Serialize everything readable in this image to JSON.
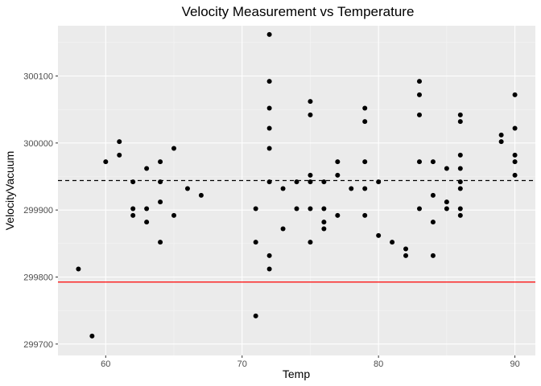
{
  "colors": {
    "panel_background": "#ebebeb",
    "grid_major": "#ffffff",
    "grid_minor": "#f5f5f5",
    "points": "#000000",
    "mean_line": "#000000",
    "reference_line": "#ff0000",
    "tick_text": "#4d4d4d"
  },
  "chart_data": {
    "type": "scatter",
    "title": "Velocity Measurement vs Temperature",
    "xlabel": "Temp",
    "ylabel": "VelocityVacuum",
    "xlim": [
      56.5,
      91.5
    ],
    "ylim": [
      299683,
      300175
    ],
    "x_ticks": [
      60,
      70,
      80,
      90
    ],
    "x_tick_labels": [
      "60",
      "70",
      "80",
      "90"
    ],
    "y_ticks": [
      299700,
      299800,
      299900,
      300000,
      300100
    ],
    "y_tick_labels": [
      "299700",
      "299800",
      "299900",
      "300000",
      "300100"
    ],
    "grid": true,
    "legend": "none",
    "hlines": [
      {
        "y": 299944,
        "style": "dashed",
        "color": "#000000"
      },
      {
        "y": 299792.5,
        "style": "solid",
        "color": "#ff0000"
      }
    ],
    "points": [
      [
        58,
        299812
      ],
      [
        59,
        299712
      ],
      [
        60,
        299972
      ],
      [
        61,
        300002
      ],
      [
        61,
        299982
      ],
      [
        62,
        299942
      ],
      [
        62,
        299902
      ],
      [
        62,
        299892
      ],
      [
        63,
        299962
      ],
      [
        63,
        299902
      ],
      [
        63,
        299882
      ],
      [
        64,
        299972
      ],
      [
        64,
        299942
      ],
      [
        64,
        299912
      ],
      [
        64,
        299852
      ],
      [
        65,
        299992
      ],
      [
        65,
        299892
      ],
      [
        66,
        299932
      ],
      [
        67,
        299922
      ],
      [
        71,
        299902
      ],
      [
        71,
        299852
      ],
      [
        71,
        299742
      ],
      [
        72,
        300162
      ],
      [
        72,
        300092
      ],
      [
        72,
        300052
      ],
      [
        72,
        300022
      ],
      [
        72,
        299992
      ],
      [
        72,
        299942
      ],
      [
        72,
        299832
      ],
      [
        72,
        299812
      ],
      [
        73,
        299932
      ],
      [
        73,
        299872
      ],
      [
        74,
        299942
      ],
      [
        74,
        299902
      ],
      [
        75,
        300062
      ],
      [
        75,
        300042
      ],
      [
        75,
        299952
      ],
      [
        75,
        299942
      ],
      [
        75,
        299902
      ],
      [
        75,
        299852
      ],
      [
        76,
        299942
      ],
      [
        76,
        299902
      ],
      [
        76,
        299882
      ],
      [
        76,
        299872
      ],
      [
        77,
        299972
      ],
      [
        77,
        299952
      ],
      [
        77,
        299892
      ],
      [
        78,
        299932
      ],
      [
        79,
        300052
      ],
      [
        79,
        300032
      ],
      [
        79,
        299972
      ],
      [
        79,
        299932
      ],
      [
        79,
        299892
      ],
      [
        80,
        299942
      ],
      [
        80,
        299862
      ],
      [
        81,
        299852
      ],
      [
        82,
        299842
      ],
      [
        82,
        299832
      ],
      [
        83,
        300092
      ],
      [
        83,
        300072
      ],
      [
        83,
        300042
      ],
      [
        83,
        299972
      ],
      [
        83,
        299902
      ],
      [
        84,
        299972
      ],
      [
        84,
        299922
      ],
      [
        84,
        299882
      ],
      [
        84,
        299832
      ],
      [
        85,
        299962
      ],
      [
        85,
        299912
      ],
      [
        85,
        299902
      ],
      [
        86,
        300042
      ],
      [
        86,
        300032
      ],
      [
        86,
        299982
      ],
      [
        86,
        299962
      ],
      [
        86,
        299942
      ],
      [
        86,
        299932
      ],
      [
        86,
        299902
      ],
      [
        86,
        299892
      ],
      [
        89,
        300012
      ],
      [
        89,
        300002
      ],
      [
        90,
        300072
      ],
      [
        90,
        300022
      ],
      [
        90,
        299982
      ],
      [
        90,
        299972
      ],
      [
        90,
        299952
      ]
    ]
  }
}
